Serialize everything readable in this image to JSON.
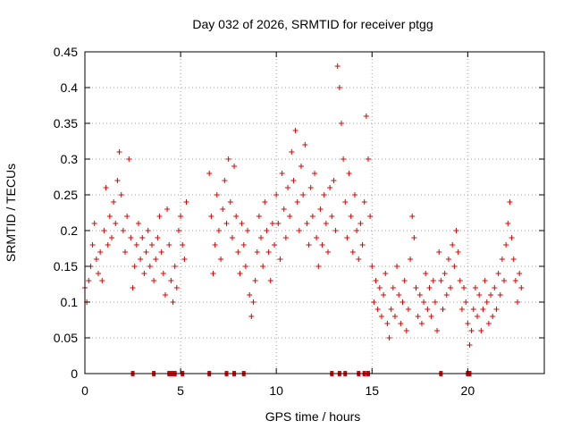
{
  "chart_data": {
    "type": "scatter",
    "title": "Day 032 of 2026, SRMTID for receiver ptgg",
    "xlabel": "GPS time / hours",
    "ylabel": "SRMTID / TECUs",
    "xlim": [
      0,
      24
    ],
    "ylim": [
      0,
      0.45
    ],
    "x_ticks": [
      0,
      5,
      10,
      15,
      20
    ],
    "x_tick_labels": [
      "0",
      "5",
      "10",
      "15",
      "20"
    ],
    "y_ticks": [
      0,
      0.05,
      0.1,
      0.15,
      0.2,
      0.25,
      0.3,
      0.35,
      0.4,
      0.45
    ],
    "y_tick_labels": [
      "0",
      "0.05",
      "0.1",
      "0.15",
      "0.2",
      "0.25",
      "0.3",
      "0.35",
      "0.4",
      "0.45"
    ],
    "grid": true,
    "marker": "plus",
    "colors": {
      "series": "#e00000",
      "grid": "#a0a0a0",
      "axis": "#000000"
    },
    "series": [
      {
        "name": "SRMTID",
        "points": [
          [
            0.0,
            0.12
          ],
          [
            0.1,
            0.1
          ],
          [
            0.2,
            0.13
          ],
          [
            0.3,
            0.15
          ],
          [
            0.4,
            0.18
          ],
          [
            0.5,
            0.21
          ],
          [
            0.6,
            0.16
          ],
          [
            0.7,
            0.14
          ],
          [
            0.8,
            0.17
          ],
          [
            0.9,
            0.13
          ],
          [
            1.0,
            0.2
          ],
          [
            1.1,
            0.26
          ],
          [
            1.2,
            0.18
          ],
          [
            1.3,
            0.22
          ],
          [
            1.4,
            0.19
          ],
          [
            1.5,
            0.24
          ],
          [
            1.6,
            0.21
          ],
          [
            1.7,
            0.27
          ],
          [
            1.8,
            0.31
          ],
          [
            1.9,
            0.25
          ],
          [
            2.0,
            0.2
          ],
          [
            2.1,
            0.17
          ],
          [
            2.2,
            0.22
          ],
          [
            2.3,
            0.3
          ],
          [
            2.4,
            0.19
          ],
          [
            2.5,
            0.12
          ],
          [
            2.6,
            0.15
          ],
          [
            2.7,
            0.18
          ],
          [
            2.8,
            0.21
          ],
          [
            2.9,
            0.16
          ],
          [
            3.0,
            0.19
          ],
          [
            3.1,
            0.14
          ],
          [
            3.2,
            0.17
          ],
          [
            3.3,
            0.2
          ],
          [
            3.4,
            0.15
          ],
          [
            3.5,
            0.18
          ],
          [
            3.6,
            0.13
          ],
          [
            3.7,
            0.16
          ],
          [
            3.8,
            0.19
          ],
          [
            3.9,
            0.22
          ],
          [
            4.0,
            0.17
          ],
          [
            4.1,
            0.14
          ],
          [
            4.2,
            0.11
          ],
          [
            4.3,
            0.23
          ],
          [
            4.4,
            0.18
          ],
          [
            4.5,
            0.13
          ],
          [
            4.6,
            0.1
          ],
          [
            4.7,
            0.15
          ],
          [
            4.8,
            0.12
          ],
          [
            4.9,
            0.2
          ],
          [
            5.0,
            0.22
          ],
          [
            5.1,
            0.18
          ],
          [
            5.2,
            0.16
          ],
          [
            5.3,
            0.24
          ],
          [
            6.5,
            0.28
          ],
          [
            6.6,
            0.22
          ],
          [
            6.7,
            0.14
          ],
          [
            6.8,
            0.18
          ],
          [
            6.9,
            0.25
          ],
          [
            7.0,
            0.2
          ],
          [
            7.1,
            0.16
          ],
          [
            7.2,
            0.23
          ],
          [
            7.3,
            0.27
          ],
          [
            7.4,
            0.21
          ],
          [
            7.5,
            0.3
          ],
          [
            7.6,
            0.24
          ],
          [
            7.7,
            0.19
          ],
          [
            7.8,
            0.29
          ],
          [
            7.9,
            0.22
          ],
          [
            8.0,
            0.17
          ],
          [
            8.1,
            0.14
          ],
          [
            8.2,
            0.21
          ],
          [
            8.3,
            0.18
          ],
          [
            8.4,
            0.15
          ],
          [
            8.5,
            0.2
          ],
          [
            8.6,
            0.11
          ],
          [
            8.7,
            0.08
          ],
          [
            8.8,
            0.1
          ],
          [
            8.9,
            0.13
          ],
          [
            9.0,
            0.17
          ],
          [
            9.1,
            0.22
          ],
          [
            9.2,
            0.19
          ],
          [
            9.3,
            0.15
          ],
          [
            9.4,
            0.24
          ],
          [
            9.5,
            0.2
          ],
          [
            9.6,
            0.17
          ],
          [
            9.7,
            0.13
          ],
          [
            9.8,
            0.21
          ],
          [
            9.9,
            0.18
          ],
          [
            10.0,
            0.25
          ],
          [
            10.1,
            0.21
          ],
          [
            10.2,
            0.16
          ],
          [
            10.3,
            0.28
          ],
          [
            10.4,
            0.23
          ],
          [
            10.5,
            0.19
          ],
          [
            10.6,
            0.26
          ],
          [
            10.7,
            0.22
          ],
          [
            10.8,
            0.31
          ],
          [
            10.9,
            0.27
          ],
          [
            11.0,
            0.34
          ],
          [
            11.1,
            0.24
          ],
          [
            11.2,
            0.2
          ],
          [
            11.3,
            0.29
          ],
          [
            11.4,
            0.25
          ],
          [
            11.5,
            0.32
          ],
          [
            11.6,
            0.21
          ],
          [
            11.7,
            0.18
          ],
          [
            11.8,
            0.26
          ],
          [
            11.9,
            0.22
          ],
          [
            12.0,
            0.28
          ],
          [
            12.1,
            0.19
          ],
          [
            12.2,
            0.15
          ],
          [
            12.3,
            0.23
          ],
          [
            12.4,
            0.18
          ],
          [
            12.5,
            0.25
          ],
          [
            12.6,
            0.21
          ],
          [
            12.7,
            0.17
          ],
          [
            12.8,
            0.26
          ],
          [
            12.9,
            0.22
          ],
          [
            13.0,
            0.27
          ],
          [
            13.1,
            0.2
          ],
          [
            13.2,
            0.43
          ],
          [
            13.3,
            0.4
          ],
          [
            13.4,
            0.35
          ],
          [
            13.5,
            0.3
          ],
          [
            13.6,
            0.24
          ],
          [
            13.7,
            0.19
          ],
          [
            13.8,
            0.28
          ],
          [
            13.9,
            0.22
          ],
          [
            14.0,
            0.17
          ],
          [
            14.1,
            0.25
          ],
          [
            14.2,
            0.2
          ],
          [
            14.3,
            0.16
          ],
          [
            14.4,
            0.21
          ],
          [
            14.5,
            0.18
          ],
          [
            14.6,
            0.24
          ],
          [
            14.7,
            0.36
          ],
          [
            14.8,
            0.3
          ],
          [
            14.9,
            0.22
          ],
          [
            15.0,
            0.15
          ],
          [
            15.1,
            0.1
          ],
          [
            15.2,
            0.13
          ],
          [
            15.3,
            0.09
          ],
          [
            15.4,
            0.12
          ],
          [
            15.5,
            0.08
          ],
          [
            15.6,
            0.11
          ],
          [
            15.7,
            0.14
          ],
          [
            15.8,
            0.07
          ],
          [
            15.9,
            0.05
          ],
          [
            16.0,
            0.09
          ],
          [
            16.1,
            0.12
          ],
          [
            16.2,
            0.08
          ],
          [
            16.3,
            0.15
          ],
          [
            16.4,
            0.11
          ],
          [
            16.5,
            0.07
          ],
          [
            16.6,
            0.1
          ],
          [
            16.7,
            0.13
          ],
          [
            16.8,
            0.06
          ],
          [
            16.9,
            0.09
          ],
          [
            17.0,
            0.16
          ],
          [
            17.1,
            0.22
          ],
          [
            17.2,
            0.19
          ],
          [
            17.3,
            0.12
          ],
          [
            17.4,
            0.08
          ],
          [
            17.5,
            0.11
          ],
          [
            17.6,
            0.07
          ],
          [
            17.7,
            0.1
          ],
          [
            17.8,
            0.14
          ],
          [
            17.9,
            0.09
          ],
          [
            18.0,
            0.12
          ],
          [
            18.1,
            0.08
          ],
          [
            18.2,
            0.13
          ],
          [
            18.3,
            0.1
          ],
          [
            18.4,
            0.06
          ],
          [
            18.5,
            0.17
          ],
          [
            18.6,
            0.13
          ],
          [
            18.7,
            0.09
          ],
          [
            18.8,
            0.14
          ],
          [
            18.9,
            0.11
          ],
          [
            19.0,
            0.16
          ],
          [
            19.1,
            0.12
          ],
          [
            19.2,
            0.18
          ],
          [
            19.3,
            0.15
          ],
          [
            19.4,
            0.2
          ],
          [
            19.5,
            0.17
          ],
          [
            19.6,
            0.13
          ],
          [
            19.7,
            0.09
          ],
          [
            19.8,
            0.12
          ],
          [
            19.9,
            0.1
          ],
          [
            20.0,
            0.07
          ],
          [
            20.1,
            0.04
          ],
          [
            20.2,
            0.06
          ],
          [
            20.3,
            0.09
          ],
          [
            20.4,
            0.12
          ],
          [
            20.5,
            0.08
          ],
          [
            20.6,
            0.11
          ],
          [
            20.7,
            0.06
          ],
          [
            20.8,
            0.09
          ],
          [
            20.9,
            0.13
          ],
          [
            21.0,
            0.1
          ],
          [
            21.1,
            0.07
          ],
          [
            21.2,
            0.11
          ],
          [
            21.3,
            0.08
          ],
          [
            21.4,
            0.12
          ],
          [
            21.5,
            0.09
          ],
          [
            21.6,
            0.14
          ],
          [
            21.7,
            0.11
          ],
          [
            21.8,
            0.16
          ],
          [
            21.9,
            0.13
          ],
          [
            22.0,
            0.18
          ],
          [
            22.1,
            0.21
          ],
          [
            22.2,
            0.24
          ],
          [
            22.3,
            0.19
          ],
          [
            22.4,
            0.16
          ],
          [
            22.5,
            0.13
          ],
          [
            22.6,
            0.1
          ],
          [
            22.7,
            0.14
          ],
          [
            22.8,
            0.12
          ]
        ]
      }
    ],
    "zero_markers_x": [
      2.5,
      3.6,
      4.4,
      4.5,
      4.6,
      4.7,
      5.1,
      6.5,
      7.4,
      7.8,
      8.3,
      12.9,
      13.3,
      13.6,
      14.3,
      14.6,
      14.8,
      18.6,
      20.0,
      20.1
    ]
  }
}
